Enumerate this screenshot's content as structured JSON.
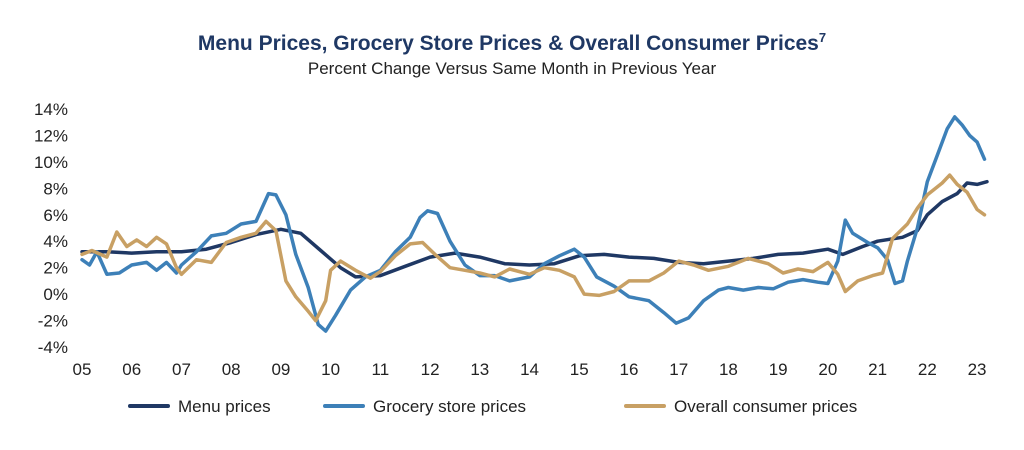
{
  "chart_data": {
    "type": "line",
    "title": "Menu Prices, Grocery Store Prices & Overall Consumer Prices",
    "title_superscript": "7",
    "subtitle": "Percent Change Versus Same Month in Previous Year",
    "xlabel": "",
    "ylabel": "",
    "x_tick_labels": [
      "05",
      "06",
      "07",
      "08",
      "09",
      "10",
      "11",
      "12",
      "13",
      "14",
      "15",
      "16",
      "17",
      "18",
      "19",
      "20",
      "21",
      "22",
      "23"
    ],
    "y_tick_labels": [
      "14%",
      "12%",
      "10%",
      "8%",
      "6%",
      "4%",
      "2%",
      "0%",
      "-2%",
      "-4%"
    ],
    "ylim": [
      -4,
      14
    ],
    "xlim": [
      2005.0,
      2023.2
    ],
    "grid": false,
    "legend_position": "bottom",
    "series": [
      {
        "name": "Menu prices",
        "color": "#1f3864",
        "points": [
          [
            2005.0,
            3.2
          ],
          [
            2005.5,
            3.2
          ],
          [
            2006.0,
            3.1
          ],
          [
            2006.5,
            3.2
          ],
          [
            2007.0,
            3.2
          ],
          [
            2007.5,
            3.4
          ],
          [
            2008.0,
            3.9
          ],
          [
            2008.5,
            4.5
          ],
          [
            2009.0,
            4.9
          ],
          [
            2009.4,
            4.6
          ],
          [
            2009.8,
            3.3
          ],
          [
            2010.2,
            2.0
          ],
          [
            2010.5,
            1.3
          ],
          [
            2011.0,
            1.4
          ],
          [
            2011.5,
            2.1
          ],
          [
            2012.0,
            2.8
          ],
          [
            2012.5,
            3.1
          ],
          [
            2013.0,
            2.8
          ],
          [
            2013.5,
            2.3
          ],
          [
            2014.0,
            2.2
          ],
          [
            2014.5,
            2.3
          ],
          [
            2015.0,
            2.9
          ],
          [
            2015.5,
            3.0
          ],
          [
            2016.0,
            2.8
          ],
          [
            2016.5,
            2.7
          ],
          [
            2017.0,
            2.4
          ],
          [
            2017.5,
            2.3
          ],
          [
            2018.0,
            2.5
          ],
          [
            2018.5,
            2.7
          ],
          [
            2019.0,
            3.0
          ],
          [
            2019.5,
            3.1
          ],
          [
            2020.0,
            3.4
          ],
          [
            2020.3,
            3.0
          ],
          [
            2020.7,
            3.6
          ],
          [
            2021.0,
            4.0
          ],
          [
            2021.5,
            4.3
          ],
          [
            2021.8,
            4.8
          ],
          [
            2022.0,
            6.0
          ],
          [
            2022.3,
            7.0
          ],
          [
            2022.6,
            7.6
          ],
          [
            2022.8,
            8.4
          ],
          [
            2023.0,
            8.3
          ],
          [
            2023.2,
            8.5
          ]
        ]
      },
      {
        "name": "Grocery store prices",
        "color": "#3d80b8",
        "points": [
          [
            2005.0,
            2.6
          ],
          [
            2005.15,
            2.2
          ],
          [
            2005.3,
            3.2
          ],
          [
            2005.5,
            1.5
          ],
          [
            2005.75,
            1.6
          ],
          [
            2006.0,
            2.2
          ],
          [
            2006.3,
            2.4
          ],
          [
            2006.5,
            1.8
          ],
          [
            2006.7,
            2.4
          ],
          [
            2006.9,
            1.6
          ],
          [
            2007.0,
            2.2
          ],
          [
            2007.3,
            3.2
          ],
          [
            2007.6,
            4.4
          ],
          [
            2007.9,
            4.6
          ],
          [
            2008.2,
            5.3
          ],
          [
            2008.5,
            5.5
          ],
          [
            2008.75,
            7.6
          ],
          [
            2008.9,
            7.5
          ],
          [
            2009.1,
            6.0
          ],
          [
            2009.3,
            3.0
          ],
          [
            2009.55,
            0.5
          ],
          [
            2009.75,
            -2.3
          ],
          [
            2009.9,
            -2.8
          ],
          [
            2010.1,
            -1.6
          ],
          [
            2010.4,
            0.3
          ],
          [
            2010.7,
            1.3
          ],
          [
            2011.0,
            1.8
          ],
          [
            2011.3,
            3.2
          ],
          [
            2011.6,
            4.3
          ],
          [
            2011.8,
            5.8
          ],
          [
            2011.95,
            6.3
          ],
          [
            2012.15,
            6.1
          ],
          [
            2012.4,
            4.0
          ],
          [
            2012.7,
            2.2
          ],
          [
            2013.0,
            1.4
          ],
          [
            2013.3,
            1.4
          ],
          [
            2013.6,
            1.0
          ],
          [
            2014.0,
            1.3
          ],
          [
            2014.3,
            2.3
          ],
          [
            2014.6,
            2.9
          ],
          [
            2014.9,
            3.4
          ],
          [
            2015.1,
            2.8
          ],
          [
            2015.35,
            1.3
          ],
          [
            2015.7,
            0.6
          ],
          [
            2016.0,
            -0.2
          ],
          [
            2016.4,
            -0.5
          ],
          [
            2016.7,
            -1.4
          ],
          [
            2016.95,
            -2.2
          ],
          [
            2017.2,
            -1.8
          ],
          [
            2017.5,
            -0.5
          ],
          [
            2017.8,
            0.3
          ],
          [
            2018.0,
            0.5
          ],
          [
            2018.3,
            0.3
          ],
          [
            2018.6,
            0.5
          ],
          [
            2018.9,
            0.4
          ],
          [
            2019.2,
            0.9
          ],
          [
            2019.5,
            1.1
          ],
          [
            2019.8,
            0.9
          ],
          [
            2020.0,
            0.8
          ],
          [
            2020.2,
            2.5
          ],
          [
            2020.35,
            5.6
          ],
          [
            2020.5,
            4.6
          ],
          [
            2020.8,
            3.9
          ],
          [
            2021.0,
            3.5
          ],
          [
            2021.2,
            2.6
          ],
          [
            2021.35,
            0.8
          ],
          [
            2021.5,
            1.0
          ],
          [
            2021.6,
            2.5
          ],
          [
            2021.8,
            5.0
          ],
          [
            2022.0,
            8.5
          ],
          [
            2022.2,
            10.5
          ],
          [
            2022.4,
            12.5
          ],
          [
            2022.55,
            13.4
          ],
          [
            2022.7,
            12.8
          ],
          [
            2022.85,
            12.0
          ],
          [
            2023.0,
            11.5
          ],
          [
            2023.15,
            10.2
          ]
        ]
      },
      {
        "name": "Overall consumer prices",
        "color": "#c8a064",
        "points": [
          [
            2005.0,
            3.0
          ],
          [
            2005.2,
            3.3
          ],
          [
            2005.5,
            2.8
          ],
          [
            2005.7,
            4.7
          ],
          [
            2005.9,
            3.6
          ],
          [
            2006.1,
            4.1
          ],
          [
            2006.3,
            3.6
          ],
          [
            2006.5,
            4.3
          ],
          [
            2006.7,
            3.8
          ],
          [
            2006.9,
            2.0
          ],
          [
            2007.0,
            1.5
          ],
          [
            2007.3,
            2.6
          ],
          [
            2007.6,
            2.4
          ],
          [
            2007.9,
            3.9
          ],
          [
            2008.2,
            4.3
          ],
          [
            2008.5,
            4.6
          ],
          [
            2008.7,
            5.5
          ],
          [
            2008.9,
            4.8
          ],
          [
            2009.1,
            1.0
          ],
          [
            2009.3,
            -0.2
          ],
          [
            2009.55,
            -1.3
          ],
          [
            2009.7,
            -2.0
          ],
          [
            2009.9,
            -0.5
          ],
          [
            2010.0,
            1.8
          ],
          [
            2010.2,
            2.5
          ],
          [
            2010.5,
            1.8
          ],
          [
            2010.8,
            1.2
          ],
          [
            2011.0,
            1.7
          ],
          [
            2011.3,
            2.9
          ],
          [
            2011.6,
            3.8
          ],
          [
            2011.85,
            3.9
          ],
          [
            2012.1,
            3.0
          ],
          [
            2012.4,
            2.0
          ],
          [
            2012.7,
            1.8
          ],
          [
            2013.0,
            1.6
          ],
          [
            2013.3,
            1.3
          ],
          [
            2013.6,
            1.9
          ],
          [
            2014.0,
            1.5
          ],
          [
            2014.3,
            2.0
          ],
          [
            2014.6,
            1.8
          ],
          [
            2014.9,
            1.3
          ],
          [
            2015.1,
            0.0
          ],
          [
            2015.4,
            -0.1
          ],
          [
            2015.7,
            0.2
          ],
          [
            2016.0,
            1.0
          ],
          [
            2016.4,
            1.0
          ],
          [
            2016.7,
            1.6
          ],
          [
            2017.0,
            2.5
          ],
          [
            2017.3,
            2.2
          ],
          [
            2017.6,
            1.8
          ],
          [
            2018.0,
            2.1
          ],
          [
            2018.4,
            2.7
          ],
          [
            2018.8,
            2.3
          ],
          [
            2019.1,
            1.6
          ],
          [
            2019.4,
            1.9
          ],
          [
            2019.7,
            1.7
          ],
          [
            2020.0,
            2.4
          ],
          [
            2020.2,
            1.5
          ],
          [
            2020.35,
            0.2
          ],
          [
            2020.6,
            1.0
          ],
          [
            2020.9,
            1.4
          ],
          [
            2021.1,
            1.6
          ],
          [
            2021.3,
            4.2
          ],
          [
            2021.6,
            5.3
          ],
          [
            2021.8,
            6.5
          ],
          [
            2022.0,
            7.5
          ],
          [
            2022.3,
            8.4
          ],
          [
            2022.45,
            9.0
          ],
          [
            2022.6,
            8.3
          ],
          [
            2022.8,
            7.7
          ],
          [
            2023.0,
            6.4
          ],
          [
            2023.15,
            6.0
          ]
        ]
      }
    ]
  }
}
